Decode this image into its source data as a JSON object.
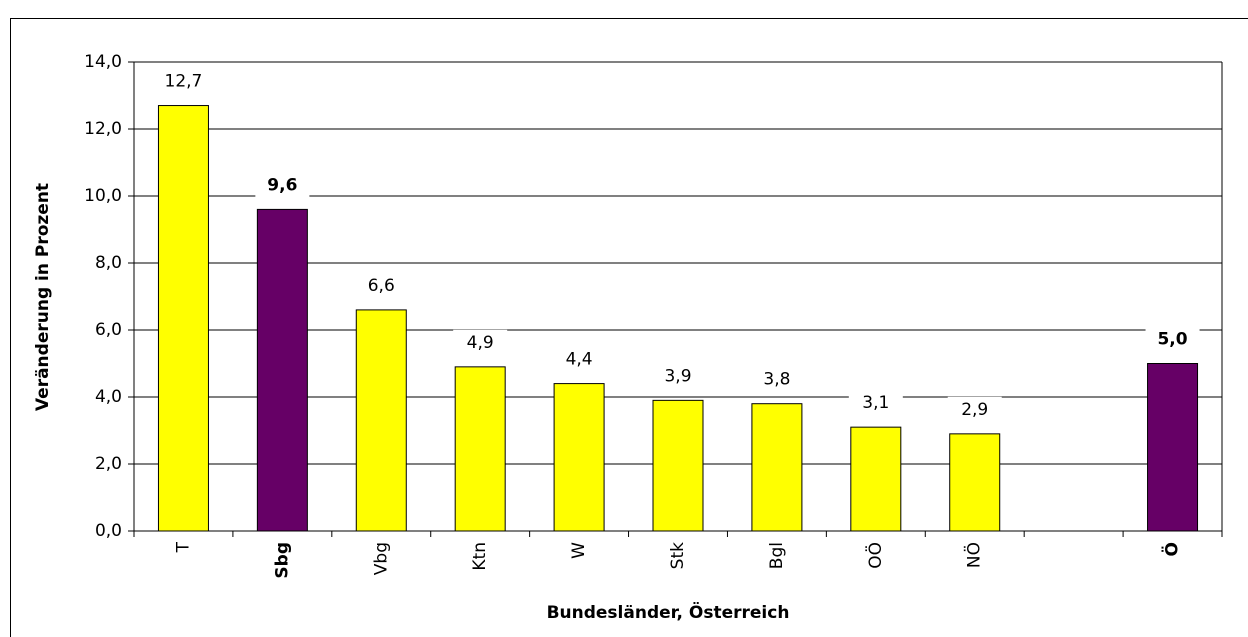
{
  "chart_data": {
    "type": "bar",
    "x_label": "Bundesländer, Österreich",
    "y_label": "Veränderung in Prozent",
    "categories": [
      "T",
      "Sbg",
      "Vbg",
      "Ktn",
      "W",
      "Stk",
      "Bgl",
      "OÖ",
      "NÖ",
      null,
      "Ö"
    ],
    "values": [
      12.7,
      9.6,
      6.6,
      4.9,
      4.4,
      3.9,
      3.8,
      3.1,
      2.9,
      null,
      5.0
    ],
    "value_labels": [
      "12,7",
      "9,6",
      "6,6",
      "4,9",
      "4,4",
      "3,9",
      "3,8",
      "3,1",
      "2,9",
      null,
      "5,0"
    ],
    "colors": [
      "#ffff00",
      "#660066",
      "#ffff00",
      "#ffff00",
      "#ffff00",
      "#ffff00",
      "#ffff00",
      "#ffff00",
      "#ffff00",
      null,
      "#660066"
    ],
    "bold": [
      false,
      true,
      false,
      false,
      false,
      false,
      false,
      false,
      false,
      false,
      true
    ],
    "ylim": [
      0,
      14
    ],
    "yticks": [
      {
        "value": 0,
        "label": "0,0"
      },
      {
        "value": 2,
        "label": "2,0"
      },
      {
        "value": 4,
        "label": "4,0"
      },
      {
        "value": 6,
        "label": "6,0"
      },
      {
        "value": 8,
        "label": "8,0"
      },
      {
        "value": 10,
        "label": "10,0"
      },
      {
        "value": 12,
        "label": "12,0"
      },
      {
        "value": 14,
        "label": "14,0"
      }
    ],
    "grid": true
  }
}
